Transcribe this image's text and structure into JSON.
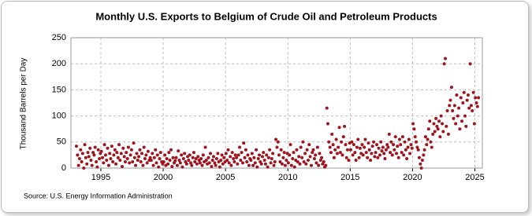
{
  "chart_data": {
    "type": "scatter",
    "title": "Monthly U.S. Exports to Belgium of Crude Oil and Petroleum Products",
    "y_label": "Thousand Barrels per Day",
    "source": "Source: U.S. Energy Information Administration",
    "color": "#a0141e",
    "grid": true,
    "xlim": [
      1992.6,
      2025.6
    ],
    "xticks": [
      1995,
      2000,
      2005,
      2010,
      2015,
      2020,
      2025
    ],
    "ylim": [
      0,
      250
    ],
    "yticks": [
      0,
      50,
      100,
      150,
      200,
      250
    ],
    "x": [
      1993.04,
      1993.13,
      1993.21,
      1993.29,
      1993.38,
      1993.46,
      1993.54,
      1993.63,
      1993.71,
      1993.79,
      1993.88,
      1993.96,
      1994.04,
      1994.13,
      1994.21,
      1994.29,
      1994.38,
      1994.46,
      1994.54,
      1994.63,
      1994.71,
      1994.79,
      1994.88,
      1994.96,
      1995.04,
      1995.13,
      1995.21,
      1995.29,
      1995.38,
      1995.46,
      1995.54,
      1995.63,
      1995.71,
      1995.79,
      1995.88,
      1995.96,
      1996.04,
      1996.13,
      1996.21,
      1996.29,
      1996.38,
      1996.46,
      1996.54,
      1996.63,
      1996.71,
      1996.79,
      1996.88,
      1996.96,
      1997.04,
      1997.13,
      1997.21,
      1997.29,
      1997.38,
      1997.46,
      1997.54,
      1997.63,
      1997.71,
      1997.79,
      1997.88,
      1997.96,
      1998.04,
      1998.13,
      1998.21,
      1998.29,
      1998.38,
      1998.46,
      1998.54,
      1998.63,
      1998.71,
      1998.79,
      1998.88,
      1998.96,
      1999.04,
      1999.13,
      1999.21,
      1999.29,
      1999.38,
      1999.46,
      1999.54,
      1999.63,
      1999.71,
      1999.79,
      1999.88,
      1999.96,
      2000.04,
      2000.13,
      2000.21,
      2000.29,
      2000.38,
      2000.46,
      2000.54,
      2000.63,
      2000.71,
      2000.79,
      2000.88,
      2000.96,
      2001.04,
      2001.13,
      2001.21,
      2001.29,
      2001.38,
      2001.46,
      2001.54,
      2001.63,
      2001.71,
      2001.79,
      2001.88,
      2001.96,
      2002.04,
      2002.13,
      2002.21,
      2002.29,
      2002.38,
      2002.46,
      2002.54,
      2002.63,
      2002.71,
      2002.79,
      2002.88,
      2002.96,
      2003.04,
      2003.13,
      2003.21,
      2003.29,
      2003.38,
      2003.46,
      2003.54,
      2003.63,
      2003.71,
      2003.79,
      2003.88,
      2003.96,
      2004.04,
      2004.13,
      2004.21,
      2004.29,
      2004.38,
      2004.46,
      2004.54,
      2004.63,
      2004.71,
      2004.79,
      2004.88,
      2004.96,
      2005.04,
      2005.13,
      2005.21,
      2005.29,
      2005.38,
      2005.46,
      2005.54,
      2005.63,
      2005.71,
      2005.79,
      2005.88,
      2005.96,
      2006.04,
      2006.13,
      2006.21,
      2006.29,
      2006.38,
      2006.46,
      2006.54,
      2006.63,
      2006.71,
      2006.79,
      2006.88,
      2006.96,
      2007.04,
      2007.13,
      2007.21,
      2007.29,
      2007.38,
      2007.46,
      2007.54,
      2007.63,
      2007.71,
      2007.79,
      2007.88,
      2007.96,
      2008.04,
      2008.13,
      2008.21,
      2008.29,
      2008.38,
      2008.46,
      2008.54,
      2008.63,
      2008.71,
      2008.79,
      2008.88,
      2008.96,
      2009.04,
      2009.13,
      2009.21,
      2009.29,
      2009.38,
      2009.46,
      2009.54,
      2009.63,
      2009.71,
      2009.79,
      2009.88,
      2009.96,
      2010.04,
      2010.13,
      2010.21,
      2010.29,
      2010.38,
      2010.46,
      2010.54,
      2010.63,
      2010.71,
      2010.79,
      2010.88,
      2010.96,
      2011.04,
      2011.13,
      2011.21,
      2011.29,
      2011.38,
      2011.46,
      2011.54,
      2011.63,
      2011.71,
      2011.79,
      2011.88,
      2011.96,
      2012.04,
      2012.13,
      2012.21,
      2012.29,
      2012.38,
      2012.46,
      2012.54,
      2012.63,
      2012.71,
      2012.79,
      2012.88,
      2012.96,
      2013.04,
      2013.13,
      2013.21,
      2013.29,
      2013.38,
      2013.46,
      2013.54,
      2013.63,
      2013.71,
      2013.79,
      2013.88,
      2013.96,
      2014.04,
      2014.13,
      2014.21,
      2014.29,
      2014.38,
      2014.46,
      2014.54,
      2014.63,
      2014.71,
      2014.79,
      2014.88,
      2014.96,
      2015.04,
      2015.13,
      2015.21,
      2015.29,
      2015.38,
      2015.46,
      2015.54,
      2015.63,
      2015.71,
      2015.79,
      2015.88,
      2015.96,
      2016.04,
      2016.13,
      2016.21,
      2016.29,
      2016.38,
      2016.46,
      2016.54,
      2016.63,
      2016.71,
      2016.79,
      2016.88,
      2016.96,
      2017.04,
      2017.13,
      2017.21,
      2017.29,
      2017.38,
      2017.46,
      2017.54,
      2017.63,
      2017.71,
      2017.79,
      2017.88,
      2017.96,
      2018.04,
      2018.13,
      2018.21,
      2018.29,
      2018.38,
      2018.46,
      2018.54,
      2018.63,
      2018.71,
      2018.79,
      2018.88,
      2018.96,
      2019.04,
      2019.13,
      2019.21,
      2019.29,
      2019.38,
      2019.46,
      2019.54,
      2019.63,
      2019.71,
      2019.79,
      2019.88,
      2019.96,
      2020.04,
      2020.13,
      2020.21,
      2020.29,
      2020.38,
      2020.46,
      2020.54,
      2020.63,
      2020.71,
      2020.79,
      2020.88,
      2020.96,
      2021.04,
      2021.13,
      2021.21,
      2021.29,
      2021.38,
      2021.46,
      2021.54,
      2021.63,
      2021.71,
      2021.79,
      2021.88,
      2021.96,
      2022.04,
      2022.13,
      2022.21,
      2022.29,
      2022.38,
      2022.46,
      2022.54,
      2022.63,
      2022.71,
      2022.79,
      2022.88,
      2022.96,
      2023.04,
      2023.13,
      2023.21,
      2023.29,
      2023.38,
      2023.46,
      2023.54,
      2023.63,
      2023.71,
      2023.79,
      2023.88,
      2023.96,
      2024.04,
      2024.13,
      2024.21,
      2024.29,
      2024.38,
      2024.46,
      2024.54,
      2024.63,
      2024.71,
      2024.79,
      2024.88,
      2024.96,
      2025.04,
      2025.13,
      2025.21,
      2025.29
    ],
    "values": [
      42,
      25,
      5,
      18,
      35,
      12,
      28,
      0,
      45,
      20,
      8,
      30,
      22,
      38,
      15,
      5,
      30,
      25,
      40,
      12,
      2,
      35,
      18,
      28,
      32,
      20,
      10,
      45,
      25,
      15,
      38,
      5,
      28,
      18,
      42,
      12,
      25,
      35,
      8,
      30,
      20,
      45,
      15,
      28,
      3,
      38,
      22,
      12,
      30,
      18,
      40,
      10,
      25,
      35,
      12,
      48,
      20,
      5,
      28,
      15,
      22,
      35,
      12,
      28,
      5,
      40,
      18,
      25,
      10,
      32,
      15,
      20,
      15,
      28,
      5,
      20,
      35,
      10,
      25,
      2,
      18,
      30,
      12,
      8,
      12,
      25,
      5,
      18,
      8,
      30,
      15,
      35,
      3,
      20,
      10,
      14,
      20,
      5,
      33,
      15,
      10,
      25,
      2,
      18,
      28,
      12,
      8,
      22,
      15,
      25,
      10,
      5,
      20,
      30,
      12,
      18,
      8,
      22,
      15,
      10,
      18,
      5,
      25,
      12,
      40,
      15,
      8,
      20,
      10,
      28,
      3,
      15,
      22,
      10,
      5,
      18,
      28,
      12,
      2,
      15,
      25,
      8,
      20,
      12,
      28,
      15,
      35,
      10,
      22,
      5,
      30,
      18,
      12,
      25,
      20,
      8,
      25,
      40,
      15,
      30,
      10,
      48,
      20,
      35,
      12,
      25,
      5,
      18,
      15,
      28,
      5,
      20,
      10,
      35,
      2,
      18,
      25,
      12,
      8,
      22,
      30,
      15,
      8,
      25,
      2,
      20,
      35,
      10,
      18,
      28,
      5,
      12,
      55,
      40,
      50,
      25,
      12,
      35,
      8,
      20,
      30,
      5,
      15,
      28,
      10,
      25,
      45,
      5,
      18,
      30,
      2,
      15,
      35,
      12,
      22,
      8,
      40,
      20,
      50,
      12,
      28,
      8,
      35,
      15,
      45,
      22,
      5,
      30,
      35,
      18,
      25,
      10,
      40,
      5,
      28,
      15,
      20,
      8,
      12,
      2,
      5,
      115,
      85,
      50,
      40,
      30,
      65,
      45,
      20,
      35,
      55,
      28,
      40,
      78,
      30,
      50,
      25,
      60,
      80,
      45,
      20,
      35,
      15,
      48,
      35,
      50,
      25,
      45,
      30,
      15,
      40,
      55,
      20,
      38,
      28,
      45,
      25,
      40,
      55,
      30,
      20,
      48,
      35,
      15,
      28,
      42,
      50,
      22,
      30,
      45,
      20,
      38,
      25,
      50,
      33,
      40,
      28,
      18,
      35,
      45,
      40,
      65,
      30,
      50,
      25,
      45,
      35,
      60,
      28,
      42,
      20,
      55,
      45,
      30,
      60,
      25,
      50,
      35,
      18,
      40,
      55,
      28,
      45,
      38,
      85,
      75,
      60,
      50,
      40,
      35,
      20,
      8,
      0,
      15,
      25,
      35,
      60,
      45,
      55,
      75,
      90,
      50,
      40,
      65,
      85,
      70,
      95,
      80,
      75,
      90,
      60,
      100,
      85,
      70,
      200,
      210,
      80,
      110,
      65,
      120,
      130,
      155,
      110,
      95,
      120,
      85,
      140,
      100,
      115,
      75,
      135,
      90,
      125,
      145,
      100,
      80,
      130,
      140,
      115,
      200,
      120,
      110,
      145,
      85,
      135,
      125,
      118,
      135
    ]
  }
}
